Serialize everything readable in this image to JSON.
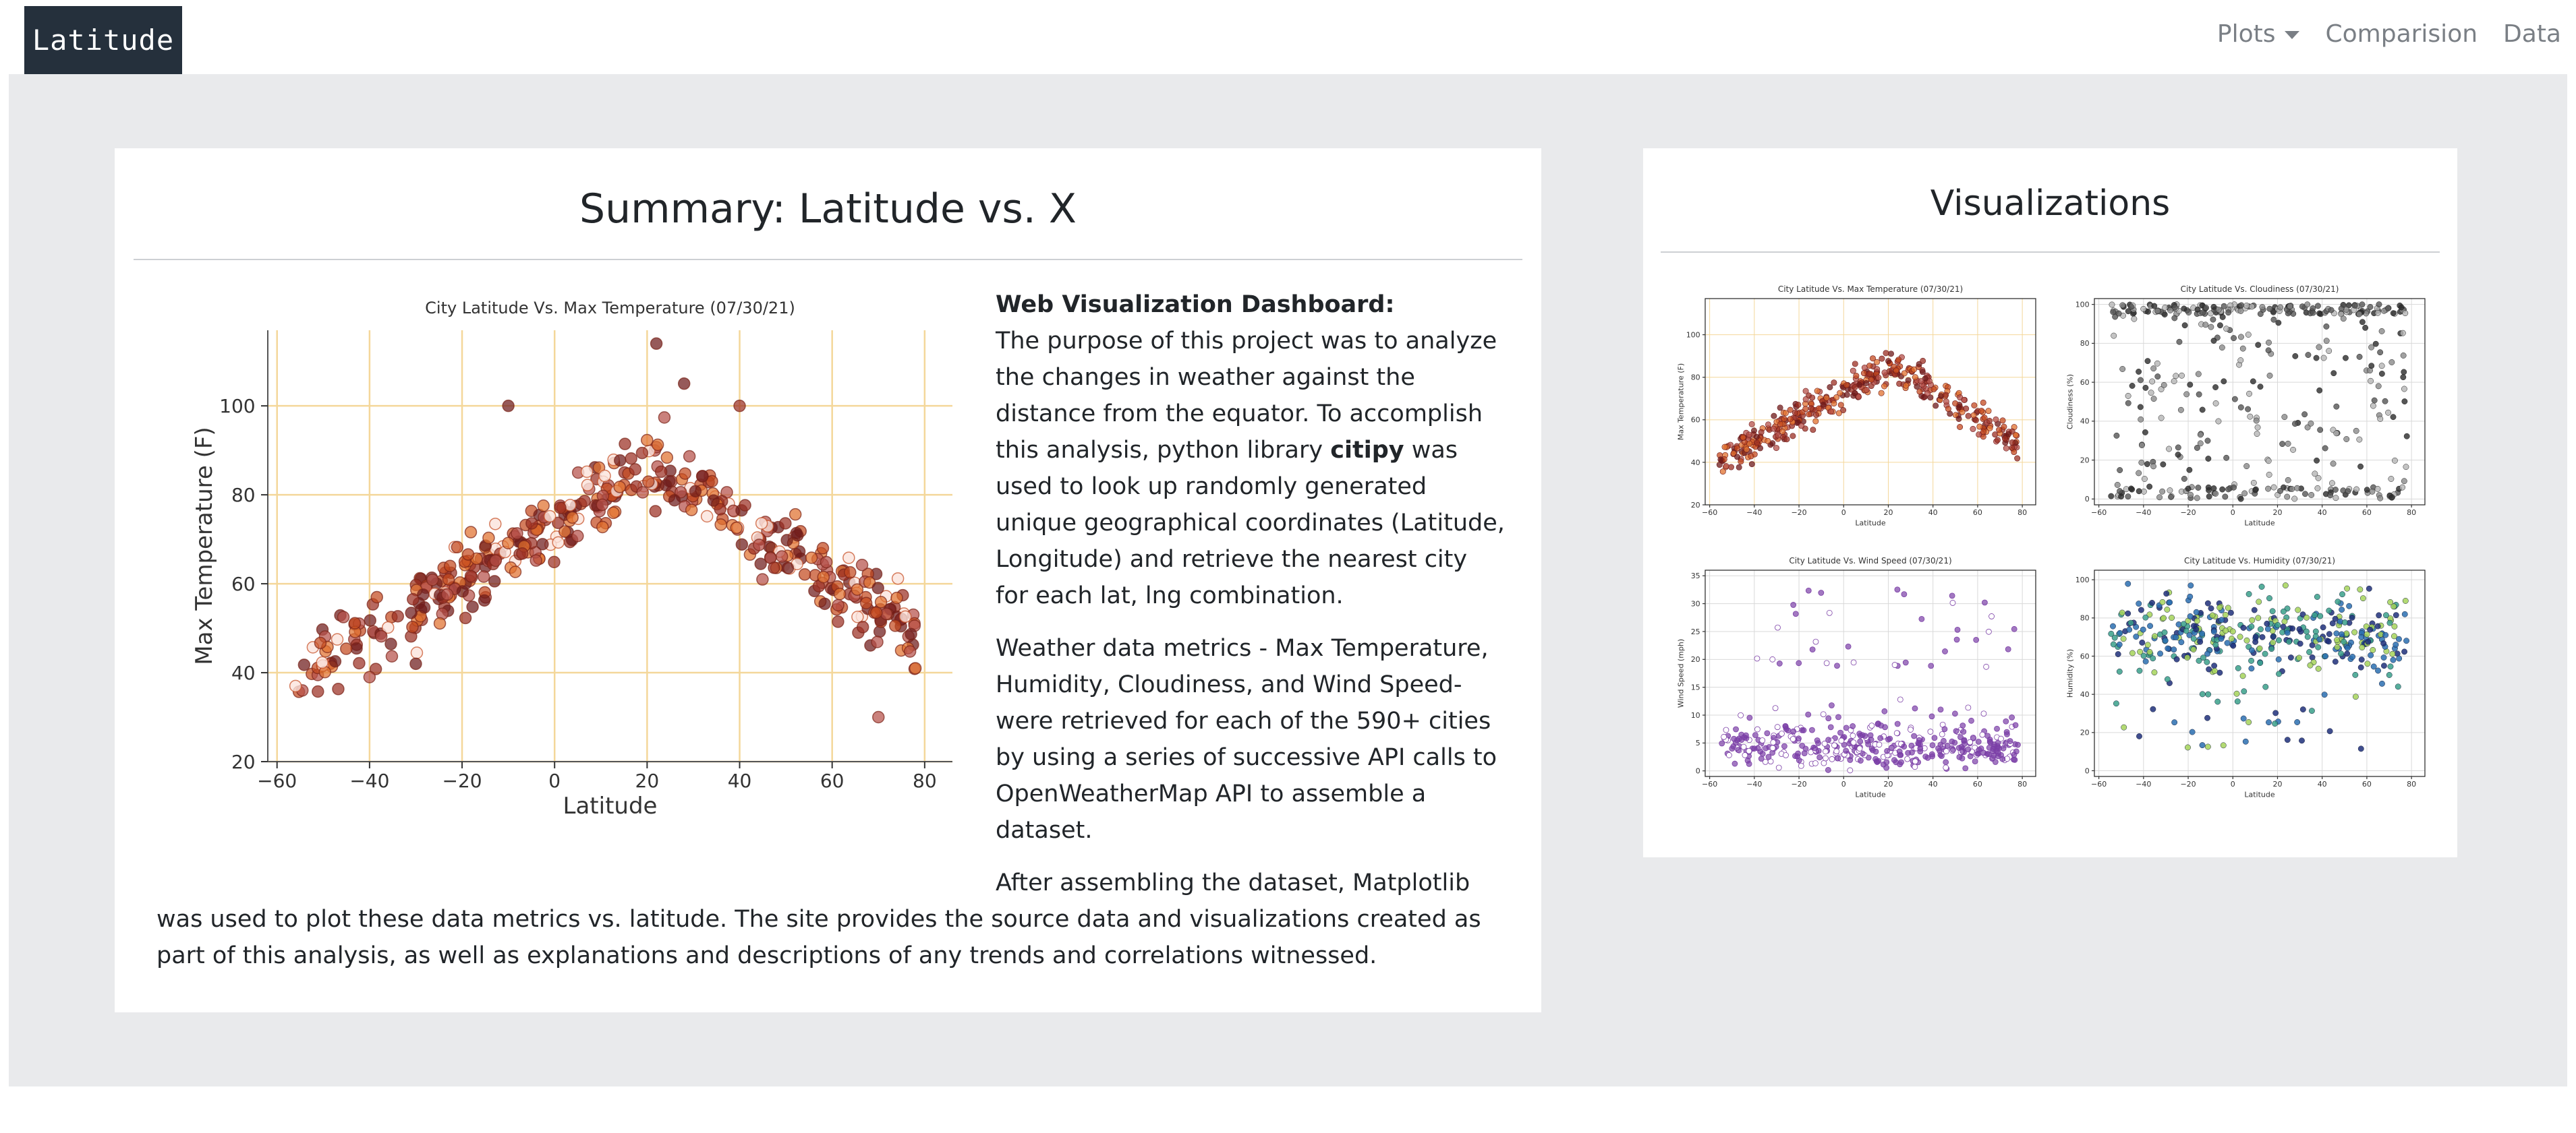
{
  "navbar": {
    "brand": "Latitude",
    "links": [
      {
        "label": "Plots",
        "has_dropdown": true
      },
      {
        "label": "Comparision",
        "has_dropdown": false
      },
      {
        "label": "Data",
        "has_dropdown": false
      }
    ]
  },
  "summary": {
    "title": "Summary: Latitude vs. X",
    "heading": "Web Visualization Dashboard:",
    "p1_before": "The purpose of this project was to analyze the changes in weather against the distance from the equator. To accomplish this analysis, python library ",
    "p1_bold": "citipy",
    "p1_after": " was used to look up randomly generated unique geographical coordinates (Latitude, Longitude) and retrieve the nearest city for each lat, lng combination.",
    "p2": "Weather data metrics - Max Temperature, Humidity, Cloudiness, and Wind Speed-were retrieved for each of the 590+ cities by using a series of successive API calls to OpenWeatherMap API to assemble a dataset.",
    "p3": "After assembling the dataset, Matplotlib was used to plot these data metrics vs. latitude. The site provides the source data and visualizations created as part of this analysis, as well as explanations and descriptions of any trends and correlations witnessed."
  },
  "visualizations": {
    "title": "Visualizations"
  },
  "colors": {
    "brand_bg": "#25303c",
    "page_bg": "#e9eaec",
    "grid_temp": "#f4d79a",
    "temp_points": [
      "#6e1a1a",
      "#9b2f23",
      "#c44a1f",
      "#e0702e",
      "#b6504a"
    ],
    "cloud_points": [
      "#2b2b2b",
      "#555555",
      "#8a8a8a",
      "#b5b5b5"
    ],
    "wind_points": "#7b3fa6",
    "humidity_points": [
      "#1f2f7a",
      "#2a6fb0",
      "#3aa08a",
      "#a6d45a"
    ]
  },
  "chart_data": [
    {
      "id": "main_temp",
      "type": "scatter",
      "title": "City Latitude Vs. Max Temperature (07/30/21)",
      "xlabel": "Latitude",
      "ylabel": "Max Temperature (F)",
      "xlim": [
        -62,
        86
      ],
      "ylim": [
        20,
        117
      ],
      "xticks": [
        -60,
        -40,
        -20,
        0,
        20,
        40,
        60,
        80
      ],
      "yticks": [
        20,
        40,
        60,
        80,
        100
      ],
      "grid": true,
      "trend": {
        "peak_x": 22,
        "peak_y": 86,
        "left_x": -56,
        "left_y": 40,
        "right_x": 76,
        "right_y": 50,
        "spread": 7,
        "count": 430
      },
      "points_sample": [
        [
          -56,
          37
        ],
        [
          -40,
          39
        ],
        [
          -30,
          42
        ],
        [
          -10,
          100
        ],
        [
          22,
          114
        ],
        [
          28,
          105
        ],
        [
          40,
          100
        ],
        [
          58,
          68
        ],
        [
          70,
          30
        ],
        [
          78,
          41
        ]
      ]
    },
    {
      "id": "mini_temp",
      "type": "scatter",
      "title": "City Latitude Vs. Max Temperature (07/30/21)",
      "xlabel": "Latitude",
      "ylabel": "Max Temperature (F)",
      "xlim": [
        -62,
        86
      ],
      "ylim": [
        20,
        117
      ],
      "xticks": [
        -60,
        -40,
        -20,
        0,
        20,
        40,
        60,
        80
      ],
      "yticks": [
        20,
        40,
        60,
        80,
        100
      ],
      "grid": true
    },
    {
      "id": "mini_cloud",
      "type": "scatter",
      "title": "City Latitude Vs. Cloudiness (07/30/21)",
      "xlabel": "Latitude",
      "ylabel": "Cloudiness (%)",
      "xlim": [
        -62,
        86
      ],
      "ylim": [
        -3,
        103
      ],
      "xticks": [
        -60,
        -40,
        -20,
        0,
        20,
        40,
        60,
        80
      ],
      "yticks": [
        0,
        20,
        40,
        60,
        80,
        100
      ],
      "grid": true
    },
    {
      "id": "mini_wind",
      "type": "scatter",
      "title": "City Latitude Vs. Wind Speed (07/30/21)",
      "xlabel": "Latitude",
      "ylabel": "Wind Speed (mph)",
      "xlim": [
        -62,
        86
      ],
      "ylim": [
        -1,
        36
      ],
      "xticks": [
        -60,
        -40,
        -20,
        0,
        20,
        40,
        60,
        80
      ],
      "yticks": [
        0,
        5,
        10,
        15,
        20,
        25,
        30,
        35
      ],
      "grid": true
    },
    {
      "id": "mini_hum",
      "type": "scatter",
      "title": "City Latitude Vs. Humidity (07/30/21)",
      "xlabel": "Latitude",
      "ylabel": "Humidity (%)",
      "xlim": [
        -62,
        86
      ],
      "ylim": [
        -3,
        105
      ],
      "xticks": [
        -60,
        -40,
        -20,
        0,
        20,
        40,
        60,
        80
      ],
      "yticks": [
        0,
        20,
        40,
        60,
        80,
        100
      ],
      "grid": true
    }
  ]
}
